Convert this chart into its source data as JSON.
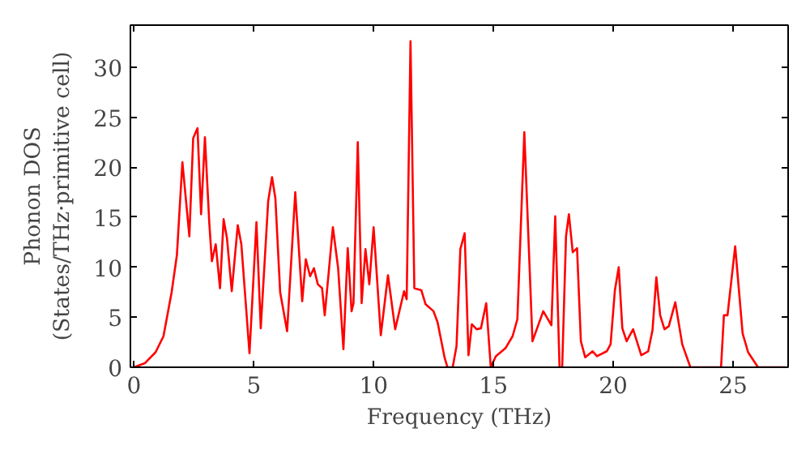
{
  "chart_data": {
    "type": "line",
    "xlabel": "Frequency (THz)",
    "ylabel": "Phonon DOS\n(States/THz·primitive cell)",
    "xlim": [
      -0.15,
      27.3
    ],
    "ylim": [
      0,
      34.2
    ],
    "xticks": [
      0,
      5,
      10,
      15,
      20,
      25
    ],
    "yticks": [
      0,
      5,
      10,
      15,
      20,
      25,
      30
    ],
    "grid": false,
    "series": [
      {
        "color": "#ff0000",
        "x": [
          0,
          0.45,
          0.9,
          1.23,
          1.57,
          1.79,
          2.02,
          2.31,
          2.47,
          2.65,
          2.8,
          2.96,
          3.14,
          3.25,
          3.41,
          3.59,
          3.74,
          3.88,
          4.08,
          4.33,
          4.48,
          4.82,
          5.11,
          5.29,
          5.6,
          5.76,
          5.9,
          6.1,
          6.39,
          6.73,
          7.02,
          7.17,
          7.35,
          7.51,
          7.67,
          7.85,
          7.96,
          8.3,
          8.52,
          8.74,
          8.92,
          9.08,
          9.16,
          9.34,
          9.5,
          9.66,
          9.82,
          10,
          10.3,
          10.6,
          10.9,
          11.27,
          11.38,
          11.54,
          11.7,
          11.99,
          12.17,
          12.5,
          12.67,
          12.96,
          13.08,
          13.3,
          13.46,
          13.62,
          13.8,
          13.96,
          14.1,
          14.3,
          14.48,
          14.7,
          14.89,
          15.1,
          15.5,
          15.8,
          16.0,
          16.29,
          16.63,
          17.08,
          17.42,
          17.58,
          17.76,
          17.87,
          18.03,
          18.15,
          18.31,
          18.49,
          18.65,
          18.83,
          19.14,
          19.32,
          19.73,
          19.89,
          20.07,
          20.23,
          20.38,
          20.56,
          20.83,
          21.17,
          21.46,
          21.64,
          21.8,
          21.96,
          22.14,
          22.32,
          22.59,
          22.88,
          23.22,
          24.5,
          24.62,
          24.77,
          25.09,
          25.4,
          25.63,
          26.04,
          27.2
        ],
        "values": [
          0,
          0.4,
          1.5,
          3.1,
          7.5,
          11.2,
          20.5,
          13.1,
          22.9,
          23.9,
          15.3,
          23.0,
          14.5,
          10.6,
          12.3,
          7.9,
          14.8,
          12.9,
          7.6,
          14.2,
          12.3,
          1.4,
          14.5,
          3.9,
          16.6,
          19.0,
          16.9,
          7.5,
          3.6,
          17.5,
          6.6,
          10.8,
          9.1,
          9.9,
          8.3,
          7.9,
          5.2,
          14.0,
          9.9,
          1.8,
          11.9,
          5.6,
          6.4,
          22.5,
          6.4,
          11.8,
          8.3,
          14.0,
          3.2,
          9.2,
          3.8,
          7.6,
          6.8,
          32.6,
          7.9,
          7.7,
          6.3,
          5.6,
          4.5,
          1.0,
          0,
          0,
          2.1,
          11.8,
          13.4,
          1.2,
          4.3,
          3.8,
          3.9,
          6.4,
          0,
          1.1,
          1.9,
          3.1,
          4.8,
          23.5,
          2.6,
          5.6,
          4.2,
          15.1,
          0,
          0,
          13.1,
          15.3,
          11.5,
          11.9,
          2.6,
          1.0,
          1.6,
          1.1,
          1.6,
          2.3,
          7.7,
          10.0,
          3.9,
          2.6,
          3.8,
          1.2,
          1.6,
          3.7,
          9.0,
          5.2,
          3.8,
          4.1,
          6.5,
          2.3,
          0,
          0,
          5.2,
          5.2,
          12.1,
          3.4,
          1.5,
          0,
          0
        ]
      }
    ]
  }
}
